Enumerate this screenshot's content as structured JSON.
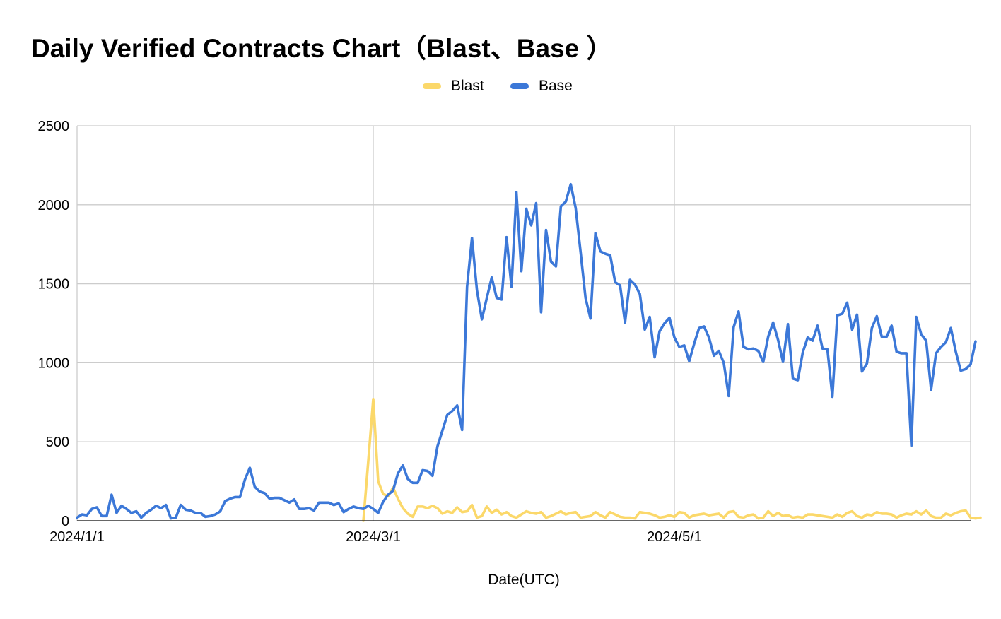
{
  "chart_data": {
    "type": "line",
    "title": "Daily Verified Contracts Chart（Blast、Base ）",
    "xlabel": "Date(UTC)",
    "ylabel": "",
    "ylim": [
      0,
      2500
    ],
    "yticks": [
      0,
      500,
      1000,
      1500,
      2000,
      2500
    ],
    "xticks": [
      "2024/1/1",
      "2024/3/1",
      "2024/5/1"
    ],
    "xticks_index": [
      0,
      60,
      121
    ],
    "x_start": "2024/1/1",
    "x_end": "2024/6/30",
    "grid": true,
    "legend_position": "top",
    "series": [
      {
        "name": "Blast",
        "color": "#fbd86a",
        "start_date": "2024/2/28",
        "values": [
          0,
          380,
          770,
          250,
          170,
          155,
          210,
          140,
          80,
          45,
          25,
          90,
          90,
          80,
          95,
          80,
          45,
          60,
          50,
          85,
          55,
          60,
          100,
          20,
          30,
          90,
          50,
          70,
          40,
          55,
          30,
          20,
          40,
          60,
          50,
          45,
          55,
          20,
          30,
          45,
          60,
          40,
          50,
          55,
          20,
          25,
          30,
          55,
          35,
          20,
          55,
          40,
          25,
          20,
          20,
          15,
          55,
          50,
          45,
          35,
          20,
          25,
          35,
          25,
          55,
          50,
          20,
          35,
          40,
          45,
          35,
          40,
          45,
          20,
          55,
          60,
          25,
          20,
          35,
          40,
          15,
          20,
          60,
          30,
          50,
          30,
          35,
          20,
          25,
          20,
          40,
          40,
          35,
          30,
          25,
          20,
          40,
          25,
          50,
          60,
          30,
          20,
          40,
          35,
          55,
          45,
          45,
          40,
          20,
          35,
          45,
          40,
          60,
          40,
          65,
          30,
          20,
          20,
          45,
          35,
          50,
          60,
          65,
          20,
          15,
          20
        ]
      },
      {
        "name": "Base",
        "color": "#3c78d8",
        "start_date": "2024/1/1",
        "values": [
          20,
          40,
          35,
          75,
          85,
          30,
          30,
          165,
          50,
          95,
          75,
          50,
          60,
          20,
          50,
          70,
          95,
          80,
          100,
          15,
          20,
          100,
          70,
          65,
          50,
          50,
          25,
          30,
          40,
          60,
          125,
          140,
          150,
          150,
          260,
          335,
          215,
          185,
          175,
          140,
          145,
          145,
          130,
          115,
          135,
          75,
          75,
          80,
          65,
          115,
          115,
          115,
          100,
          110,
          55,
          75,
          90,
          80,
          75,
          95,
          75,
          50,
          120,
          165,
          190,
          300,
          350,
          265,
          240,
          240,
          320,
          315,
          285,
          470,
          570,
          670,
          695,
          730,
          575,
          1480,
          1790,
          1460,
          1275,
          1410,
          1540,
          1410,
          1400,
          1795,
          1480,
          2080,
          1580,
          1975,
          1870,
          2010,
          1320,
          1840,
          1640,
          1610,
          1990,
          2020,
          2130,
          1980,
          1700,
          1410,
          1280,
          1820,
          1705,
          1690,
          1680,
          1510,
          1490,
          1255,
          1525,
          1495,
          1435,
          1210,
          1290,
          1035,
          1200,
          1250,
          1285,
          1160,
          1100,
          1110,
          1010,
          1120,
          1220,
          1230,
          1160,
          1045,
          1075,
          1000,
          790,
          1225,
          1325,
          1100,
          1085,
          1090,
          1075,
          1005,
          1165,
          1255,
          1145,
          1005,
          1245,
          900,
          890,
          1065,
          1160,
          1140,
          1235,
          1090,
          1085,
          785,
          1300,
          1310,
          1380,
          1210,
          1305,
          945,
          995,
          1220,
          1295,
          1165,
          1165,
          1235,
          1070,
          1060,
          1060,
          475,
          1290,
          1180,
          1140,
          830,
          1060,
          1100,
          1130,
          1220,
          1070,
          950,
          960,
          990,
          1135
        ]
      }
    ]
  }
}
